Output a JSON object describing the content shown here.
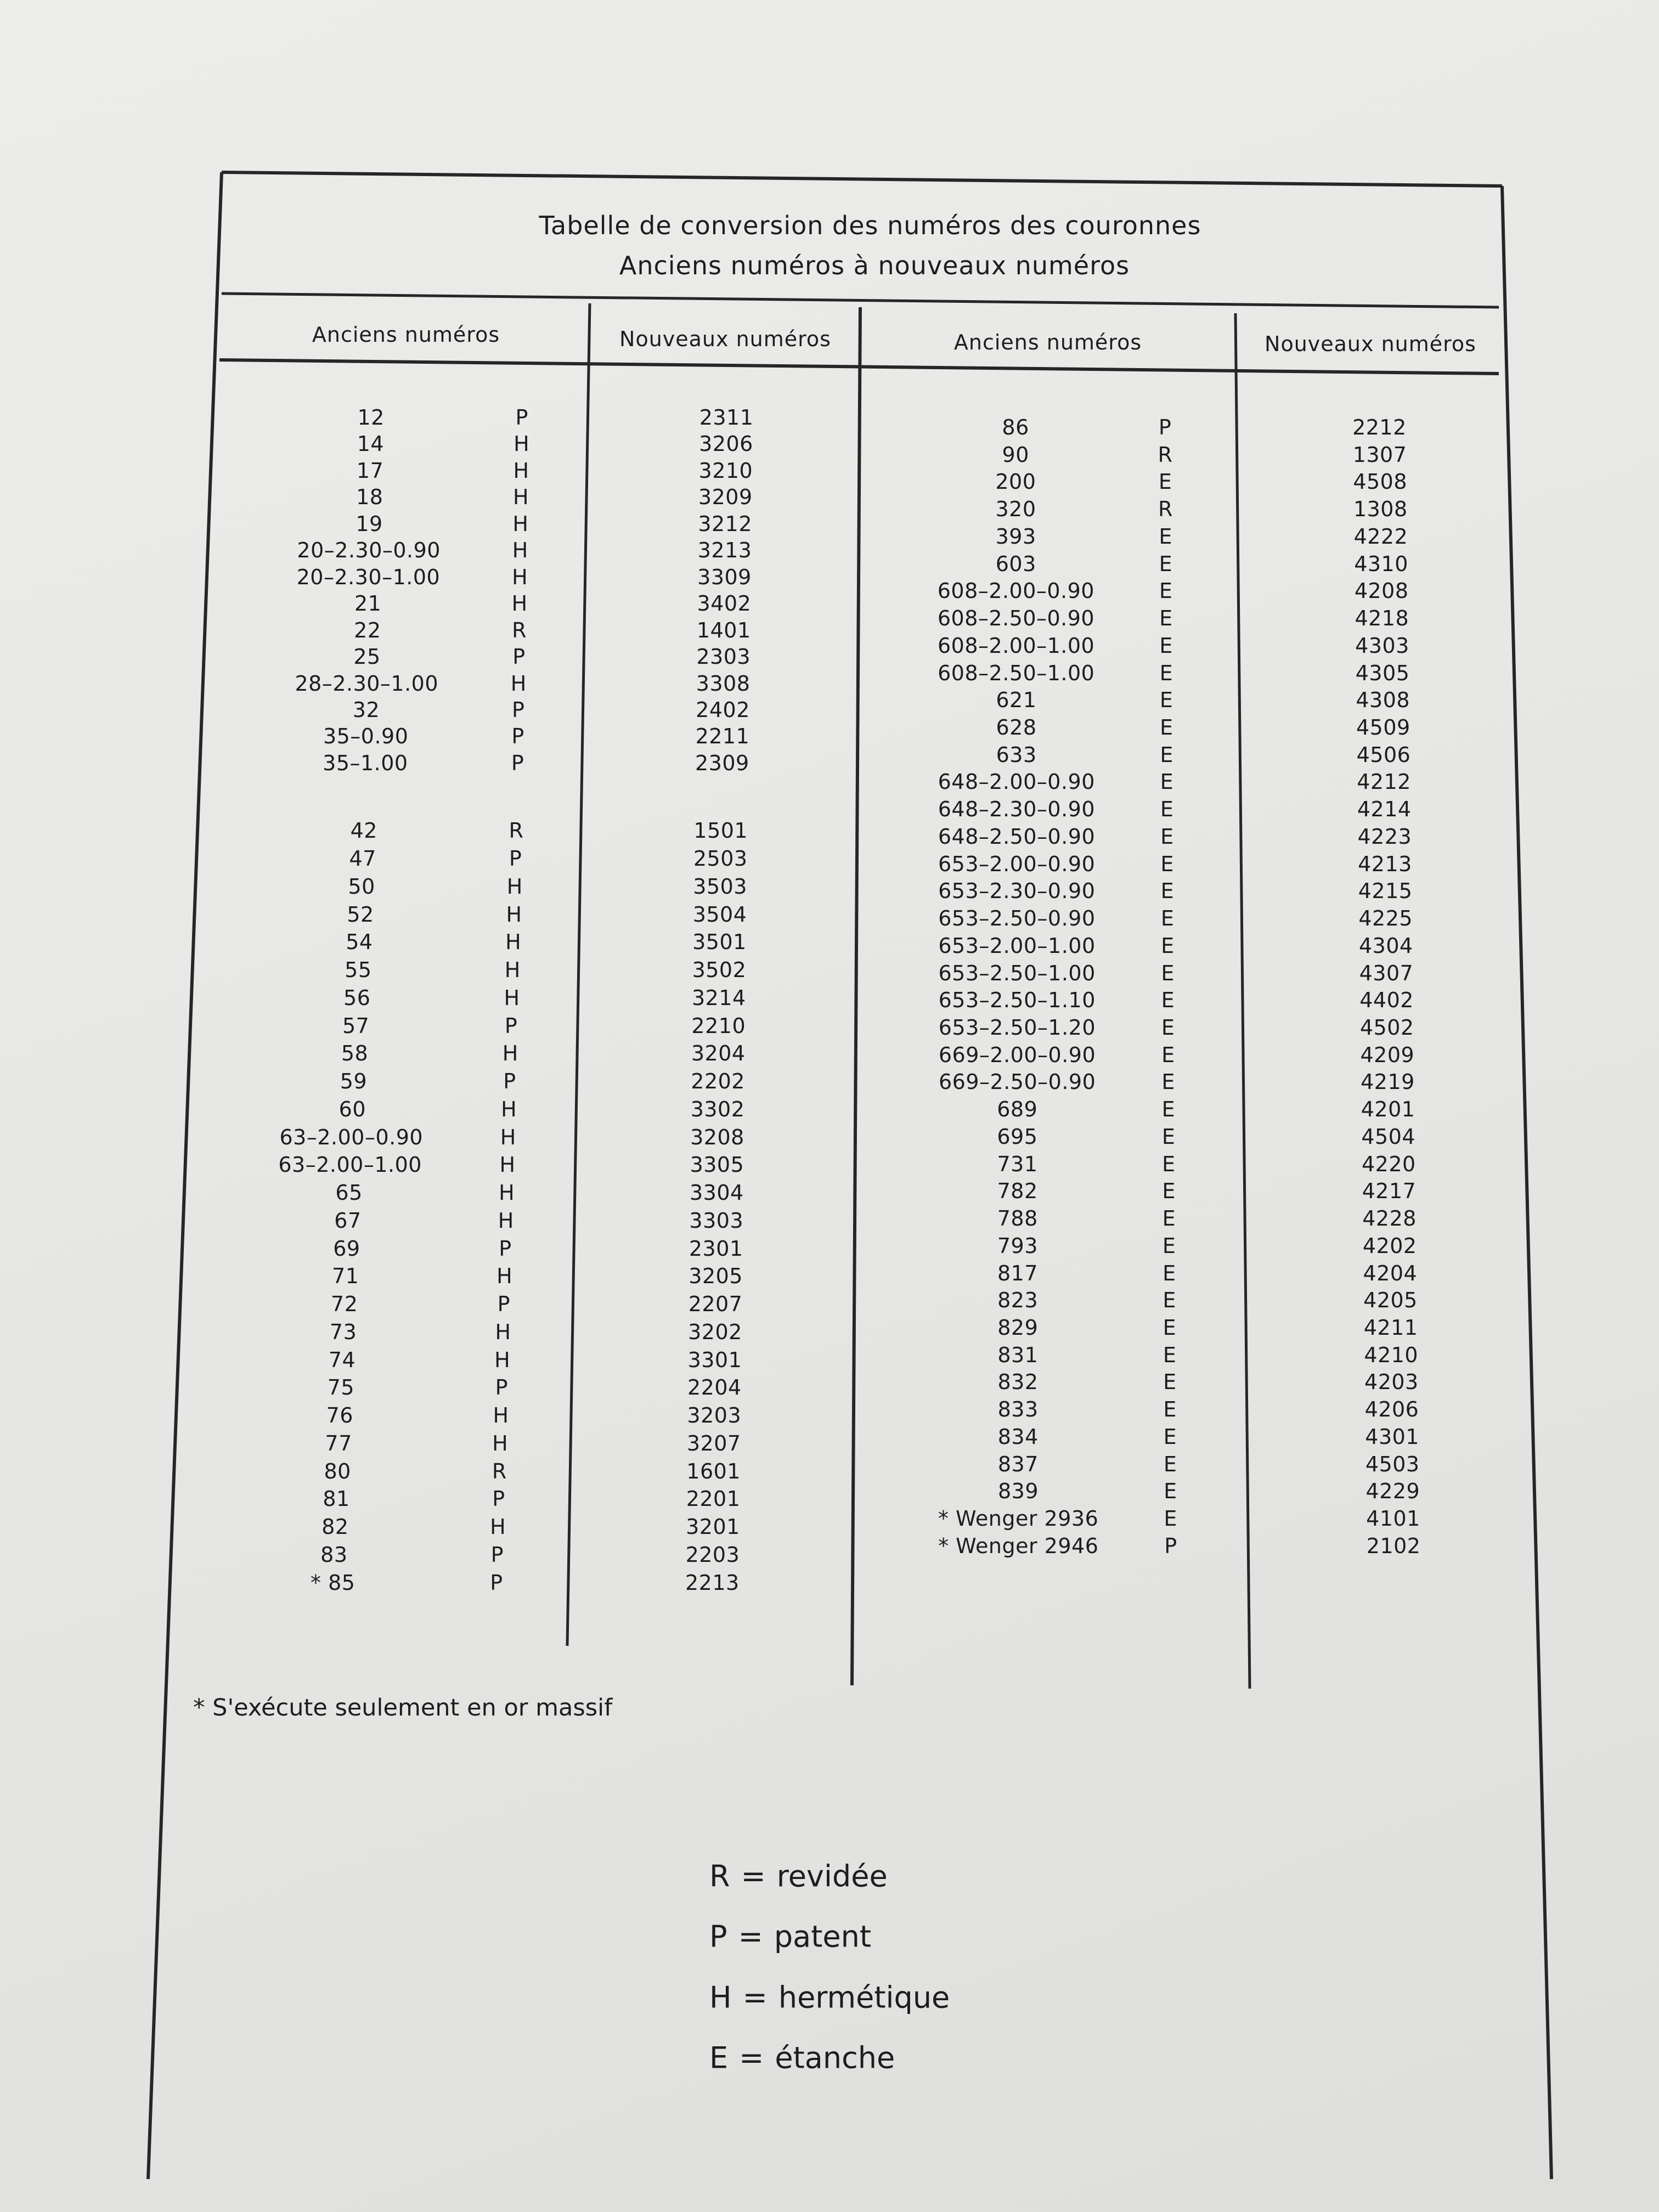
{
  "title": {
    "line1": "Tabelle de conversion des numéros des couronnes",
    "line2": "Anciens numéros à nouveaux numéros"
  },
  "headers": [
    "Anciens numéros",
    "Nouveaux numéros",
    "Anciens numéros",
    "Nouveaux numéros"
  ],
  "left_rows_block1": [
    {
      "old": "12",
      "type": "P",
      "new": "2311"
    },
    {
      "old": "14",
      "type": "H",
      "new": "3206"
    },
    {
      "old": "17",
      "type": "H",
      "new": "3210"
    },
    {
      "old": "18",
      "type": "H",
      "new": "3209"
    },
    {
      "old": "19",
      "type": "H",
      "new": "3212"
    },
    {
      "old": "20–2.30–0.90",
      "type": "H",
      "new": "3213"
    },
    {
      "old": "20–2.30–1.00",
      "type": "H",
      "new": "3309"
    },
    {
      "old": "21",
      "type": "H",
      "new": "3402"
    },
    {
      "old": "22",
      "type": "R",
      "new": "1401"
    },
    {
      "old": "25",
      "type": "P",
      "new": "2303"
    },
    {
      "old": "28–2.30–1.00",
      "type": "H",
      "new": "3308"
    },
    {
      "old": "32",
      "type": "P",
      "new": "2402"
    },
    {
      "old": "35–0.90",
      "type": "P",
      "new": "2211"
    },
    {
      "old": "35–1.00",
      "type": "P",
      "new": "2309"
    }
  ],
  "left_rows_block2": [
    {
      "old": "42",
      "type": "R",
      "new": "1501"
    },
    {
      "old": "47",
      "type": "P",
      "new": "2503"
    },
    {
      "old": "50",
      "type": "H",
      "new": "3503"
    },
    {
      "old": "52",
      "type": "H",
      "new": "3504"
    },
    {
      "old": "54",
      "type": "H",
      "new": "3501"
    },
    {
      "old": "55",
      "type": "H",
      "new": "3502"
    },
    {
      "old": "56",
      "type": "H",
      "new": "3214"
    },
    {
      "old": "57",
      "type": "P",
      "new": "2210"
    },
    {
      "old": "58",
      "type": "H",
      "new": "3204"
    },
    {
      "old": "59",
      "type": "P",
      "new": "2202"
    },
    {
      "old": "60",
      "type": "H",
      "new": "3302"
    },
    {
      "old": "63–2.00–0.90",
      "type": "H",
      "new": "3208"
    },
    {
      "old": "63–2.00–1.00",
      "type": "H",
      "new": "3305"
    },
    {
      "old": "65",
      "type": "H",
      "new": "3304"
    },
    {
      "old": "67",
      "type": "H",
      "new": "3303"
    },
    {
      "old": "69",
      "type": "P",
      "new": "2301"
    },
    {
      "old": "71",
      "type": "H",
      "new": "3205"
    },
    {
      "old": "72",
      "type": "P",
      "new": "2207"
    },
    {
      "old": "73",
      "type": "H",
      "new": "3202"
    },
    {
      "old": "74",
      "type": "H",
      "new": "3301"
    },
    {
      "old": "75",
      "type": "P",
      "new": "2204"
    },
    {
      "old": "76",
      "type": "H",
      "new": "3203"
    },
    {
      "old": "77",
      "type": "H",
      "new": "3207"
    },
    {
      "old": "80",
      "type": "R",
      "new": "1601"
    },
    {
      "old": "81",
      "type": "P",
      "new": "2201"
    },
    {
      "old": "82",
      "type": "H",
      "new": "3201"
    },
    {
      "old": "83",
      "type": "P",
      "new": "2203"
    },
    {
      "old": "* 85",
      "type": "P",
      "new": "2213"
    }
  ],
  "right_rows": [
    {
      "old": "86",
      "type": "P",
      "new": "2212"
    },
    {
      "old": "90",
      "type": "R",
      "new": "1307"
    },
    {
      "old": "200",
      "type": "E",
      "new": "4508"
    },
    {
      "old": "320",
      "type": "R",
      "new": "1308"
    },
    {
      "old": "393",
      "type": "E",
      "new": "4222"
    },
    {
      "old": "603",
      "type": "E",
      "new": "4310"
    },
    {
      "old": "608–2.00–0.90",
      "type": "E",
      "new": "4208"
    },
    {
      "old": "608–2.50–0.90",
      "type": "E",
      "new": "4218"
    },
    {
      "old": "608–2.00–1.00",
      "type": "E",
      "new": "4303"
    },
    {
      "old": "608–2.50–1.00",
      "type": "E",
      "new": "4305"
    },
    {
      "old": "621",
      "type": "E",
      "new": "4308"
    },
    {
      "old": "628",
      "type": "E",
      "new": "4509"
    },
    {
      "old": "633",
      "type": "E",
      "new": "4506"
    },
    {
      "old": "648–2.00–0.90",
      "type": "E",
      "new": "4212"
    },
    {
      "old": "648–2.30–0.90",
      "type": "E",
      "new": "4214"
    },
    {
      "old": "648–2.50–0.90",
      "type": "E",
      "new": "4223"
    },
    {
      "old": "653–2.00–0.90",
      "type": "E",
      "new": "4213"
    },
    {
      "old": "653–2.30–0.90",
      "type": "E",
      "new": "4215"
    },
    {
      "old": "653–2.50–0.90",
      "type": "E",
      "new": "4225"
    },
    {
      "old": "653–2.00–1.00",
      "type": "E",
      "new": "4304"
    },
    {
      "old": "653–2.50–1.00",
      "type": "E",
      "new": "4307"
    },
    {
      "old": "653–2.50–1.10",
      "type": "E",
      "new": "4402"
    },
    {
      "old": "653–2.50–1.20",
      "type": "E",
      "new": "4502"
    },
    {
      "old": "669–2.00–0.90",
      "type": "E",
      "new": "4209"
    },
    {
      "old": "669–2.50–0.90",
      "type": "E",
      "new": "4219"
    },
    {
      "old": "689",
      "type": "E",
      "new": "4201"
    },
    {
      "old": "695",
      "type": "E",
      "new": "4504"
    },
    {
      "old": "731",
      "type": "E",
      "new": "4220"
    },
    {
      "old": "782",
      "type": "E",
      "new": "4217"
    },
    {
      "old": "788",
      "type": "E",
      "new": "4228"
    },
    {
      "old": "793",
      "type": "E",
      "new": "4202"
    },
    {
      "old": "817",
      "type": "E",
      "new": "4204"
    },
    {
      "old": "823",
      "type": "E",
      "new": "4205"
    },
    {
      "old": "829",
      "type": "E",
      "new": "4211"
    },
    {
      "old": "831",
      "type": "E",
      "new": "4210"
    },
    {
      "old": "832",
      "type": "E",
      "new": "4203"
    },
    {
      "old": "833",
      "type": "E",
      "new": "4206"
    },
    {
      "old": "834",
      "type": "E",
      "new": "4301"
    },
    {
      "old": "837",
      "type": "E",
      "new": "4503"
    },
    {
      "old": "839",
      "type": "E",
      "new": "4229"
    },
    {
      "old": "* Wenger 2936",
      "type": "E",
      "new": "4101"
    },
    {
      "old": "* Wenger 2946",
      "type": "P",
      "new": "2102"
    }
  ],
  "footnote": "* S'exécute seulement en or massif",
  "legend": [
    {
      "code": "R",
      "sign": "=",
      "meaning": "revidée"
    },
    {
      "code": "P",
      "sign": "=",
      "meaning": "patent"
    },
    {
      "code": "H",
      "sign": "=",
      "meaning": "hermétique"
    },
    {
      "code": "E",
      "sign": "=",
      "meaning": "étanche"
    }
  ]
}
